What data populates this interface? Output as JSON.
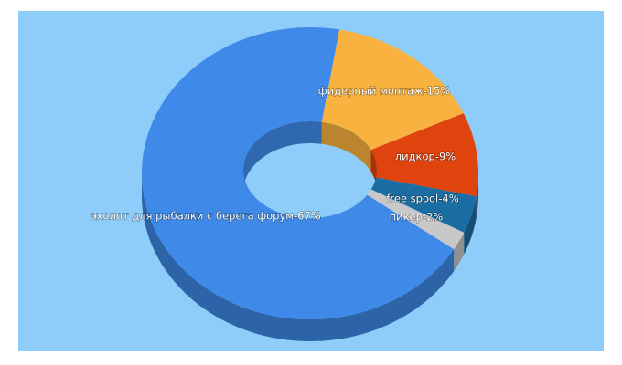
{
  "chart_data": {
    "type": "donut3d",
    "value_labels": [
      "фидерный монтаж-15%",
      "лидкор-9%",
      "free spool-4%",
      "пикер-2%",
      "эхолот для рыбалки с берега форум-67%"
    ],
    "values": [
      15,
      9,
      4,
      2,
      67
    ],
    "colors": [
      "#f9b13f",
      "#e0440e",
      "#1a6ea3",
      "#c8c8c8",
      "#3f8ae8"
    ]
  }
}
